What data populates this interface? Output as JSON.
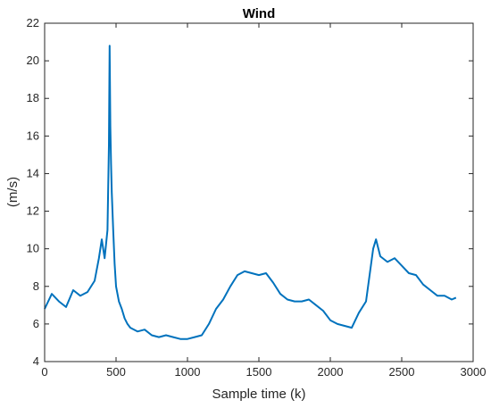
{
  "chart_data": {
    "type": "line",
    "title": "Wind",
    "xlabel": "Sample time (k)",
    "ylabel": "(m/s)",
    "xlim": [
      0,
      3000
    ],
    "ylim": [
      4,
      22
    ],
    "xticks": [
      "0",
      "500",
      "1000",
      "1500",
      "2000",
      "2500",
      "3000"
    ],
    "yticks": [
      "4",
      "6",
      "8",
      "10",
      "12",
      "14",
      "16",
      "18",
      "20",
      "22"
    ],
    "grid": false,
    "line_color": "#0072BD",
    "series": [
      {
        "x": [
          0,
          50,
          100,
          150,
          200,
          250,
          300,
          350,
          380,
          400,
          420,
          440,
          450,
          455,
          460,
          465,
          470,
          480,
          490,
          500,
          520,
          540,
          560,
          580,
          600,
          650,
          700,
          750,
          800,
          850,
          900,
          950,
          1000,
          1050,
          1100,
          1150,
          1200,
          1250,
          1300,
          1350,
          1400,
          1450,
          1500,
          1550,
          1600,
          1650,
          1700,
          1750,
          1800,
          1850,
          1900,
          1950,
          2000,
          2050,
          2100,
          2150,
          2200,
          2250,
          2300,
          2320,
          2350,
          2400,
          2450,
          2500,
          2550,
          2600,
          2650,
          2700,
          2750,
          2800,
          2850,
          2880
        ],
        "y": [
          6.8,
          7.6,
          7.2,
          6.9,
          7.8,
          7.5,
          7.7,
          8.3,
          9.5,
          10.5,
          9.5,
          11.0,
          15.5,
          20.8,
          16.5,
          14.5,
          13.0,
          11.0,
          9.2,
          8.0,
          7.2,
          6.8,
          6.3,
          6.0,
          5.8,
          5.6,
          5.7,
          5.4,
          5.3,
          5.4,
          5.3,
          5.2,
          5.2,
          5.3,
          5.4,
          6.0,
          6.8,
          7.3,
          8.0,
          8.6,
          8.8,
          8.7,
          8.6,
          8.7,
          8.2,
          7.6,
          7.3,
          7.2,
          7.2,
          7.3,
          7.0,
          6.7,
          6.2,
          6.0,
          5.9,
          5.8,
          6.6,
          7.2,
          10.0,
          10.5,
          9.6,
          9.3,
          9.5,
          9.1,
          8.7,
          8.6,
          8.1,
          7.8,
          7.5,
          7.5,
          7.3,
          7.4
        ]
      }
    ]
  }
}
